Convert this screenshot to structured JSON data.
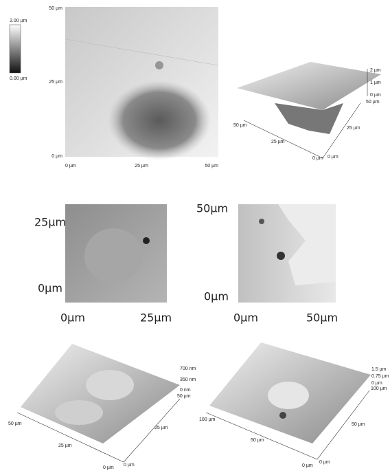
{
  "colorbar": {
    "max": "2.00 µm",
    "min": "0.00 µm"
  },
  "panel_a": {
    "y_labels": [
      "50 µm",
      "25 µm",
      "0 µm"
    ],
    "x_labels": [
      "0 µm",
      "25 µm",
      "50 µm"
    ]
  },
  "panel_b": {
    "z_labels": [
      "2 µm",
      "1 µm",
      "0 µm"
    ],
    "right_labels": [
      "50 µm",
      "25 µm",
      "0 µm"
    ],
    "left_labels": [
      "50 µm",
      "25 µm",
      "0 µm"
    ]
  },
  "panel_c": {
    "y_labels": [
      "25µm",
      "0µm"
    ],
    "x_labels": [
      "0µm",
      "25µm"
    ]
  },
  "panel_d": {
    "y_labels": [
      "50µm",
      "0µm"
    ],
    "x_labels": [
      "0µm",
      "50µm"
    ]
  },
  "panel_e": {
    "z_labels": [
      "700 nm",
      "350 nm",
      "0 nm"
    ],
    "right_labels": [
      "50 µm",
      "25 µm",
      "0 µm"
    ],
    "left_labels": [
      "50 µm",
      "25 µm",
      "0 µm"
    ]
  },
  "panel_f": {
    "z_labels": [
      "1.5 µm",
      "0.75 µm",
      "0 µm"
    ],
    "right_labels": [
      "100 µm",
      "50 µm",
      "0 µm"
    ],
    "left_labels": [
      "100 µm",
      "50 µm",
      "0 µm"
    ]
  }
}
